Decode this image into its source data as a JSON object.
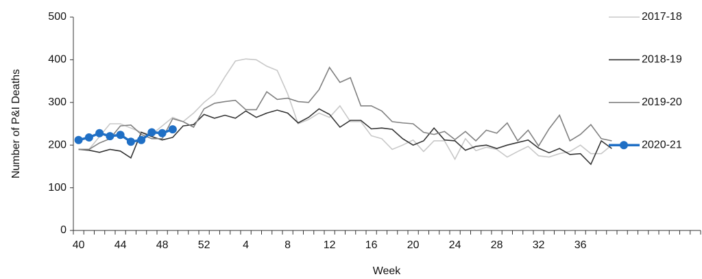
{
  "chart_data": {
    "type": "line",
    "y_label": "Number of P&I Deaths",
    "x_label": "Week",
    "categories": [
      "40",
      null,
      null,
      null,
      "44",
      null,
      null,
      null,
      "48",
      null,
      null,
      null,
      "52",
      null,
      null,
      null,
      "4",
      null,
      null,
      null,
      "8",
      null,
      null,
      null,
      "12",
      null,
      null,
      null,
      "16",
      null,
      null,
      null,
      "20",
      null,
      null,
      null,
      "24",
      null,
      null,
      null,
      "28",
      null,
      null,
      null,
      "32",
      null,
      null,
      null,
      "36",
      null,
      null,
      null,
      null,
      null,
      null,
      null,
      null,
      null,
      null,
      null
    ],
    "ylim": [
      0,
      500
    ],
    "yticks": [
      0,
      100,
      200,
      300,
      400,
      500
    ],
    "legend": "top-right",
    "series": [
      {
        "name": "2017-18",
        "color": "#c8c8c8",
        "values": [
          190,
          190,
          220,
          250,
          250,
          240,
          230,
          225,
          245,
          265,
          255,
          275,
          300,
          320,
          360,
          397,
          402,
          400,
          385,
          375,
          320,
          250,
          260,
          275,
          265,
          292,
          255,
          255,
          222,
          215,
          190,
          200,
          212,
          185,
          210,
          210,
          167,
          215,
          187,
          195,
          190,
          172,
          185,
          197,
          175,
          172,
          180,
          185,
          200,
          180,
          180,
          200,
          null,
          null,
          null,
          null,
          null,
          null,
          null,
          null
        ]
      },
      {
        "name": "2018-19",
        "color": "#333333",
        "values": [
          190,
          188,
          183,
          190,
          186,
          170,
          230,
          220,
          212,
          218,
          245,
          248,
          272,
          263,
          270,
          263,
          280,
          265,
          275,
          282,
          275,
          252,
          265,
          285,
          272,
          242,
          258,
          258,
          238,
          240,
          237,
          215,
          200,
          210,
          240,
          212,
          210,
          188,
          197,
          200,
          192,
          200,
          206,
          212,
          193,
          182,
          192,
          178,
          180,
          155,
          210,
          192,
          null,
          null,
          null,
          null,
          null,
          null,
          null,
          null
        ]
      },
      {
        "name": "2019-20",
        "color": "#808080",
        "values": [
          190,
          190,
          205,
          215,
          245,
          247,
          225,
          215,
          215,
          262,
          255,
          242,
          285,
          298,
          302,
          305,
          283,
          283,
          325,
          307,
          310,
          302,
          300,
          330,
          382,
          347,
          358,
          292,
          292,
          280,
          255,
          252,
          250,
          230,
          225,
          232,
          213,
          232,
          210,
          235,
          228,
          252,
          210,
          235,
          198,
          238,
          270,
          210,
          225,
          248,
          215,
          210,
          null,
          null,
          null,
          null,
          null,
          null,
          null,
          null
        ]
      },
      {
        "name": "2020-21",
        "color": "#1f6fc5",
        "markers": true,
        "values": [
          212,
          218,
          228,
          221,
          224,
          208,
          212,
          230,
          228,
          237,
          null,
          null,
          null,
          null,
          null,
          null,
          null,
          null,
          null,
          null,
          null,
          null,
          null,
          null,
          null,
          null,
          null,
          null,
          null,
          null,
          null,
          null,
          null,
          null,
          null,
          null,
          null,
          null,
          null,
          null,
          null,
          null,
          null,
          null,
          null,
          null,
          null,
          null,
          null,
          null,
          null,
          null,
          null,
          null,
          null,
          null,
          null,
          null,
          null,
          null
        ]
      }
    ]
  }
}
